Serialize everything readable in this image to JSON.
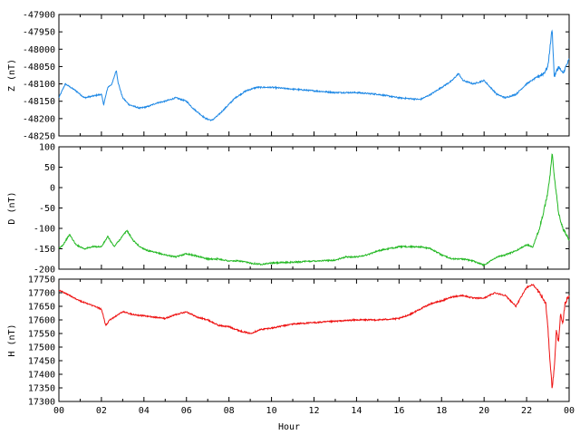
{
  "chart_data": [
    {
      "type": "line",
      "ylabel": "Z (nT)",
      "ylim": [
        -48250,
        -47900
      ],
      "yticks": [
        "-47900",
        "-47950",
        "-48000",
        "-48050",
        "-48100",
        "-48150",
        "-48200",
        "-48250"
      ],
      "color": "#1e88e5",
      "x": [
        0,
        0.3,
        0.8,
        1.2,
        1.6,
        2.0,
        2.1,
        2.3,
        2.5,
        2.7,
        2.8,
        3.0,
        3.3,
        3.8,
        4.2,
        4.6,
        5.0,
        5.5,
        6.0,
        6.3,
        6.6,
        6.9,
        7.2,
        7.5,
        7.9,
        8.3,
        8.8,
        9.3,
        10.0,
        11.0,
        12.0,
        13.0,
        14.0,
        15.0,
        16.0,
        17.0,
        17.5,
        18.0,
        18.5,
        18.8,
        19.0,
        19.5,
        20.0,
        20.3,
        20.6,
        21.0,
        21.5,
        22.0,
        22.5,
        22.8,
        23.0,
        23.2,
        23.3,
        23.5,
        23.7,
        24.0
      ],
      "y": [
        -48140,
        -48100,
        -48120,
        -48140,
        -48135,
        -48130,
        -48160,
        -48110,
        -48100,
        -48060,
        -48100,
        -48140,
        -48160,
        -48170,
        -48165,
        -48155,
        -48150,
        -48140,
        -48150,
        -48170,
        -48185,
        -48200,
        -48205,
        -48190,
        -48165,
        -48140,
        -48120,
        -48110,
        -48110,
        -48115,
        -48120,
        -48125,
        -48125,
        -48130,
        -48140,
        -48145,
        -48130,
        -48110,
        -48090,
        -48070,
        -48090,
        -48100,
        -48090,
        -48110,
        -48130,
        -48140,
        -48130,
        -48100,
        -48080,
        -48070,
        -48050,
        -47940,
        -48080,
        -48050,
        -48070,
        -48030
      ]
    },
    {
      "type": "line",
      "ylabel": "D (nT)",
      "ylim": [
        -200,
        100
      ],
      "yticks": [
        "100",
        "50",
        "0",
        "-50",
        "-100",
        "-150",
        "-200"
      ],
      "color": "#22b822",
      "x": [
        0,
        0.2,
        0.5,
        0.8,
        1.2,
        1.6,
        2.0,
        2.3,
        2.6,
        2.9,
        3.2,
        3.5,
        3.8,
        4.2,
        4.6,
        5.0,
        5.5,
        6.0,
        6.5,
        7.0,
        7.5,
        8.0,
        8.5,
        9.0,
        9.5,
        10.0,
        11.0,
        12.0,
        13.0,
        13.5,
        14.0,
        14.5,
        15.0,
        16.0,
        17.0,
        17.5,
        18.0,
        18.5,
        19.0,
        19.5,
        20.0,
        20.3,
        20.6,
        21.0,
        21.5,
        22.0,
        22.3,
        22.6,
        22.8,
        23.0,
        23.1,
        23.2,
        23.3,
        23.5,
        23.7,
        24.0
      ],
      "y": [
        -150,
        -140,
        -115,
        -140,
        -150,
        -145,
        -145,
        -120,
        -145,
        -125,
        -105,
        -130,
        -145,
        -155,
        -160,
        -165,
        -170,
        -162,
        -168,
        -175,
        -175,
        -180,
        -180,
        -185,
        -188,
        -185,
        -183,
        -180,
        -178,
        -170,
        -170,
        -165,
        -155,
        -145,
        -145,
        -150,
        -165,
        -175,
        -175,
        -180,
        -190,
        -180,
        -170,
        -165,
        -155,
        -140,
        -145,
        -100,
        -60,
        -10,
        30,
        85,
        30,
        -60,
        -100,
        -130
      ]
    },
    {
      "type": "line",
      "ylabel": "H (nT)",
      "xlabel": "Hour",
      "ylim": [
        17300,
        17750
      ],
      "yticks": [
        "17750",
        "17700",
        "17650",
        "17600",
        "17550",
        "17500",
        "17450",
        "17400",
        "17350",
        "17300"
      ],
      "xticks": [
        "00",
        "02",
        "04",
        "06",
        "08",
        "10",
        "12",
        "14",
        "16",
        "18",
        "20",
        "22",
        "00"
      ],
      "color": "#ee1111",
      "x": [
        0,
        0.5,
        1.0,
        1.5,
        2.0,
        2.2,
        2.4,
        2.6,
        3.0,
        3.5,
        4.0,
        4.5,
        5.0,
        5.5,
        6.0,
        6.5,
        7.0,
        7.5,
        8.0,
        8.5,
        9.0,
        9.5,
        10.0,
        11.0,
        12.0,
        13.0,
        14.0,
        15.0,
        16.0,
        16.5,
        17.0,
        17.5,
        18.0,
        18.5,
        19.0,
        19.5,
        20.0,
        20.5,
        21.0,
        21.5,
        22.0,
        22.3,
        22.6,
        22.9,
        23.0,
        23.1,
        23.2,
        23.3,
        23.4,
        23.5,
        23.6,
        23.7,
        23.8,
        24.0
      ],
      "y": [
        17710,
        17690,
        17670,
        17655,
        17640,
        17580,
        17600,
        17610,
        17630,
        17620,
        17615,
        17610,
        17605,
        17620,
        17630,
        17610,
        17600,
        17580,
        17575,
        17560,
        17550,
        17565,
        17570,
        17585,
        17590,
        17595,
        17600,
        17600,
        17605,
        17620,
        17640,
        17660,
        17670,
        17685,
        17690,
        17680,
        17680,
        17700,
        17690,
        17650,
        17720,
        17730,
        17700,
        17660,
        17570,
        17450,
        17350,
        17420,
        17560,
        17520,
        17620,
        17580,
        17660,
        17690
      ]
    }
  ]
}
